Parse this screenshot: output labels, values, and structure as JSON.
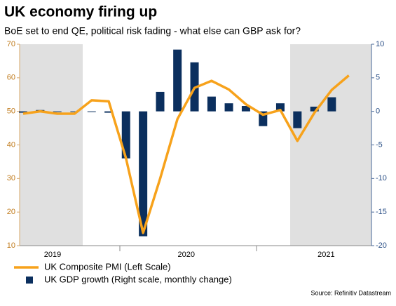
{
  "chart_data": {
    "type": "bar-line",
    "title": "UK economy firing up",
    "subtitle": "BoE set to end QE, political risk fading - what else can GBP ask for?",
    "source": "Source: Refinitiv Datastream",
    "x": [
      2019.667,
      2019.75,
      2019.833,
      2019.917,
      2020.0,
      2020.083,
      2020.167,
      2020.25,
      2020.333,
      2020.417,
      2020.5,
      2020.583,
      2020.667,
      2020.75,
      2020.833,
      2020.917,
      2021.0,
      2021.083,
      2021.167,
      2021.25
    ],
    "xlim": [
      2019.65,
      2021.36
    ],
    "xticks": [
      {
        "value": 2019.81,
        "label": "2019"
      },
      {
        "value": 2020.46,
        "label": "2020"
      },
      {
        "value": 2021.14,
        "label": "2021"
      }
    ],
    "series": [
      {
        "name": "UK Composite PMI (Left Scale)",
        "type": "line",
        "color": "#f7a21b",
        "axis": "y",
        "values": [
          49.3,
          50.0,
          49.3,
          49.3,
          53.3,
          53.0,
          36.0,
          13.8,
          30.0,
          47.7,
          57.0,
          59.1,
          56.5,
          52.1,
          49.0,
          50.4,
          41.2,
          49.6,
          56.4,
          60.7
        ]
      },
      {
        "name": "UK GDP growth (Right scale, monthly change)",
        "type": "bar",
        "color": "#0b2f5e",
        "axis": "y2",
        "values": [
          -0.2,
          0.2,
          0.0,
          0.0,
          0.0,
          -0.2,
          -7.0,
          -18.6,
          2.9,
          9.2,
          7.3,
          2.2,
          1.2,
          0.8,
          -2.2,
          1.2,
          -2.5,
          0.7,
          2.1,
          null
        ]
      }
    ],
    "ylim": [
      10,
      70
    ],
    "yticks": [
      10,
      20,
      30,
      40,
      50,
      60,
      70
    ],
    "y2lim": [
      -20,
      10
    ],
    "y2ticks": [
      -20,
      -15,
      -10,
      -5,
      0,
      5,
      10
    ]
  }
}
